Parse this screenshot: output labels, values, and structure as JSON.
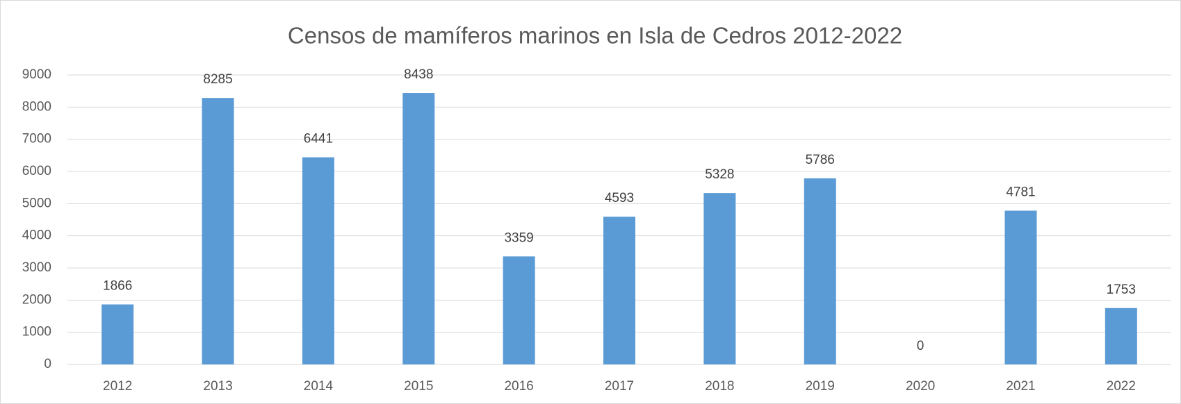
{
  "chart_data": {
    "type": "bar",
    "title": "Censos de mamíferos marinos en Isla de Cedros 2012-2022",
    "categories": [
      "2012",
      "2013",
      "2014",
      "2015",
      "2016",
      "2017",
      "2018",
      "2019",
      "2020",
      "2021",
      "2022"
    ],
    "values": [
      1866,
      8285,
      6441,
      8438,
      3359,
      4593,
      5328,
      5786,
      0,
      4781,
      1753
    ],
    "color": "#5b9bd5",
    "ylim": [
      0,
      9000
    ],
    "yticks": [
      0,
      1000,
      2000,
      3000,
      4000,
      5000,
      6000,
      7000,
      8000,
      9000
    ],
    "grid": true
  }
}
